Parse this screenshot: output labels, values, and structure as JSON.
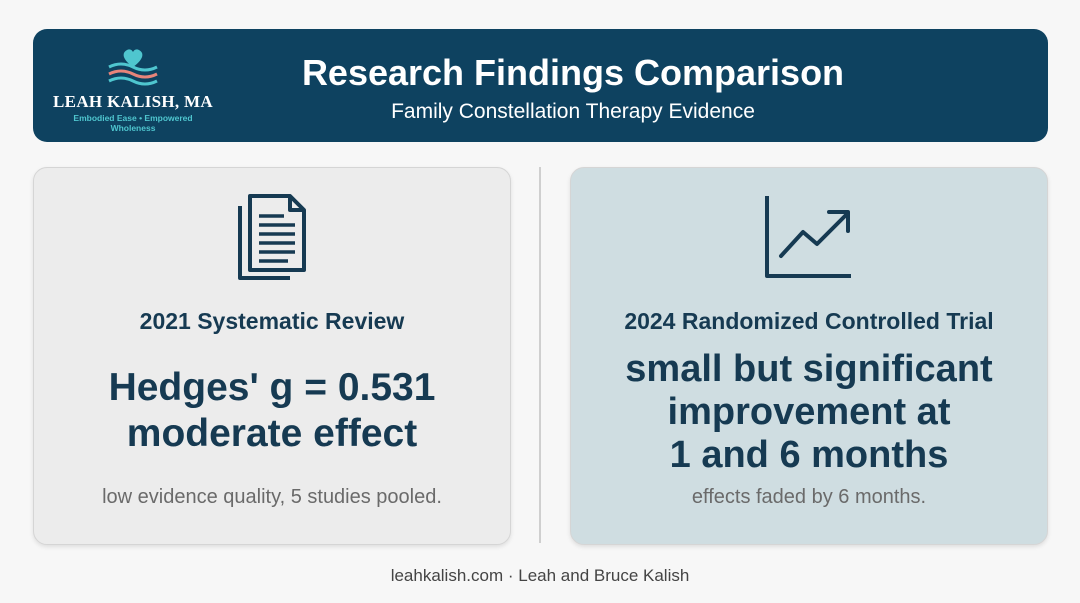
{
  "logo": {
    "name": "LEAH KALISH, MA",
    "tagline": "Embodied Ease • Empowered Wholeness"
  },
  "header": {
    "title": "Research Findings Comparison",
    "subtitle": "Family Constellation Therapy Evidence"
  },
  "left_card": {
    "icon": "document-icon",
    "heading": "2021 Systematic Review",
    "headline_line1": "Hedges' g = 0.531",
    "headline_line2": "moderate effect",
    "note": "low evidence quality, 5 studies pooled."
  },
  "right_card": {
    "icon": "trend-chart-icon",
    "heading": "2024 Randomized Controlled Trial",
    "headline_line1": "small but significant",
    "headline_line2": "improvement at",
    "headline_line3": "1 and 6 months",
    "note": "effects faded by 6 months."
  },
  "footer": {
    "text": "leahkalish.com · Leah and Bruce Kalish"
  },
  "colors": {
    "header_bg": "#0e4260",
    "text_dark": "#163a52",
    "left_card_bg": "#ececec",
    "right_card_bg": "#cfdde1",
    "logo_teal": "#4fc6cf",
    "logo_coral": "#e8847a"
  }
}
